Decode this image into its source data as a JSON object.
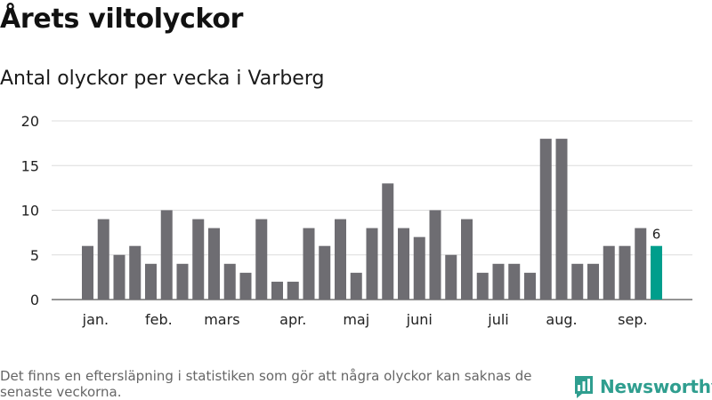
{
  "title": "Årets viltolyckor",
  "subtitle": "Antal olyckor per vecka i Varberg",
  "footnote": "Det finns en eftersläpning i statistiken som gör att några olyckor kan saknas de senaste veckorna.",
  "brand": {
    "name": "Newsworthy",
    "icon": "newsworthy-logo-icon",
    "color": "#2f9e8f"
  },
  "chart_data": {
    "type": "bar",
    "y_ticks": [
      0,
      5,
      10,
      15,
      20
    ],
    "ylim": [
      0,
      20
    ],
    "grid": true,
    "x": [
      1,
      2,
      3,
      4,
      5,
      6,
      7,
      8,
      9,
      10,
      11,
      12,
      13,
      14,
      15,
      16,
      17,
      18,
      19,
      20,
      21,
      22,
      23,
      24,
      25,
      26,
      27,
      28,
      29,
      30,
      31,
      32,
      33,
      34,
      35,
      36,
      37
    ],
    "values": [
      6,
      9,
      5,
      6,
      4,
      10,
      4,
      9,
      8,
      4,
      3,
      9,
      2,
      2,
      8,
      6,
      9,
      3,
      8,
      13,
      8,
      7,
      10,
      5,
      9,
      3,
      4,
      4,
      3,
      18,
      18,
      4,
      4,
      6,
      6,
      8,
      6
    ],
    "month_labels": [
      {
        "label": "jan.",
        "x": 1.5
      },
      {
        "label": "feb.",
        "x": 5.5
      },
      {
        "label": "mars",
        "x": 9.5
      },
      {
        "label": "apr.",
        "x": 14
      },
      {
        "label": "maj",
        "x": 18
      },
      {
        "label": "juni",
        "x": 22
      },
      {
        "label": "juli",
        "x": 27
      },
      {
        "label": "aug.",
        "x": 31
      },
      {
        "label": "sep.",
        "x": 35.5
      }
    ],
    "highlight_label": "6",
    "bar_color": "#6e6d72",
    "highlight_color": "#009e8c"
  }
}
